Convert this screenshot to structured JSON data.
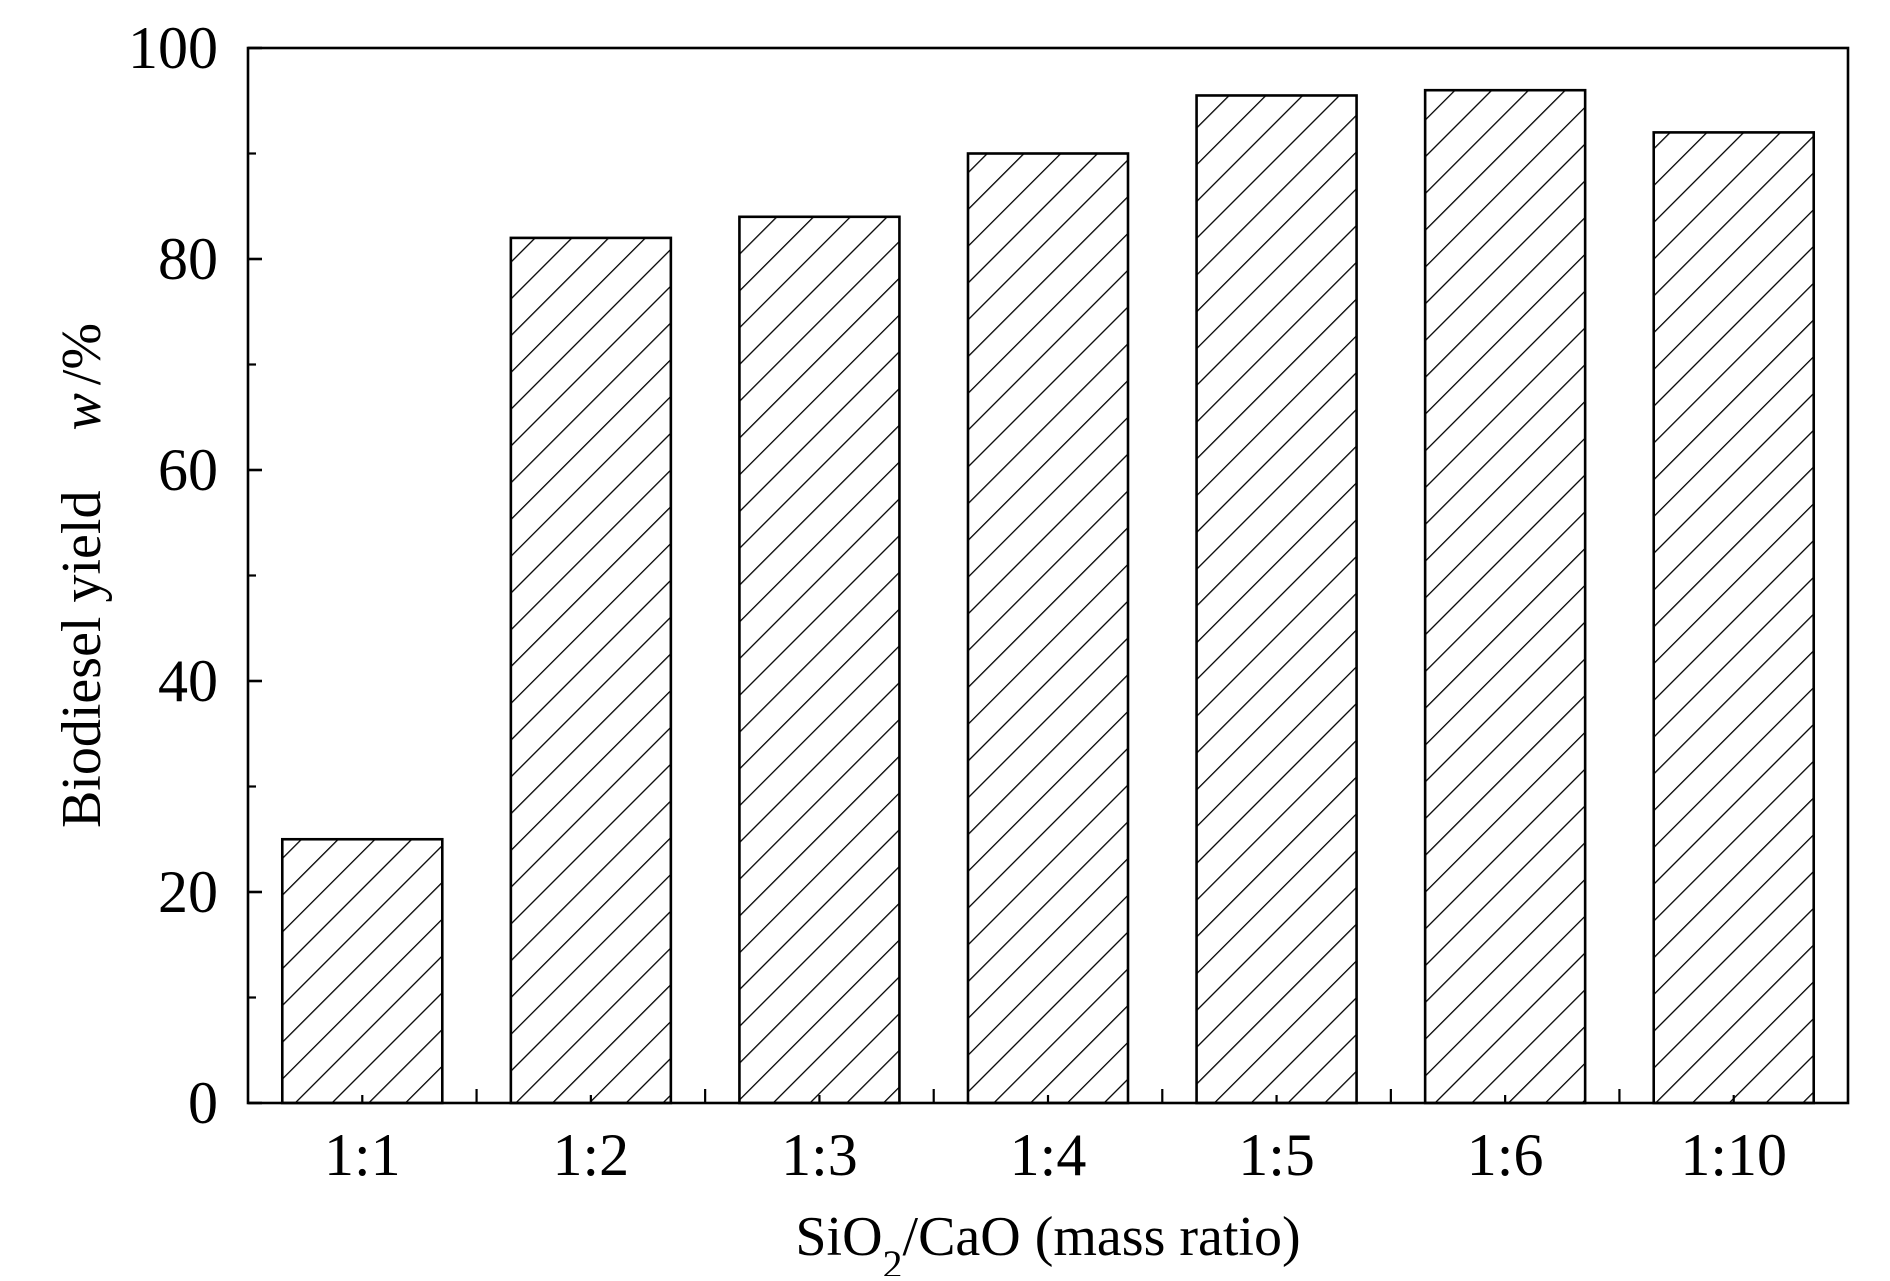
{
  "chart_data": {
    "type": "bar",
    "title": "",
    "categories": [
      "1:1",
      "1:2",
      "1:3",
      "1:4",
      "1:5",
      "1:6",
      "1:10"
    ],
    "values": [
      25,
      82,
      84,
      90,
      95.5,
      96,
      92
    ],
    "xlabel": {
      "main": "SiO",
      "subscript": "2",
      "rest": "/CaO (mass ratio)"
    },
    "ylabel": {
      "main": "Biodiesel yield",
      "variable": "w",
      "unit": "/%"
    },
    "ylim": [
      0,
      100
    ],
    "y_ticks": [
      0,
      20,
      40,
      60,
      80,
      100
    ],
    "y_minor_ticks": [
      10,
      30,
      50,
      70,
      90
    ],
    "y_tick_labels": [
      "0",
      "20",
      "40",
      "60",
      "80",
      "100"
    ],
    "bar_fill": "hatched",
    "bar_color": "#000000",
    "background": "#ffffff",
    "grid": false,
    "legend": "none"
  }
}
